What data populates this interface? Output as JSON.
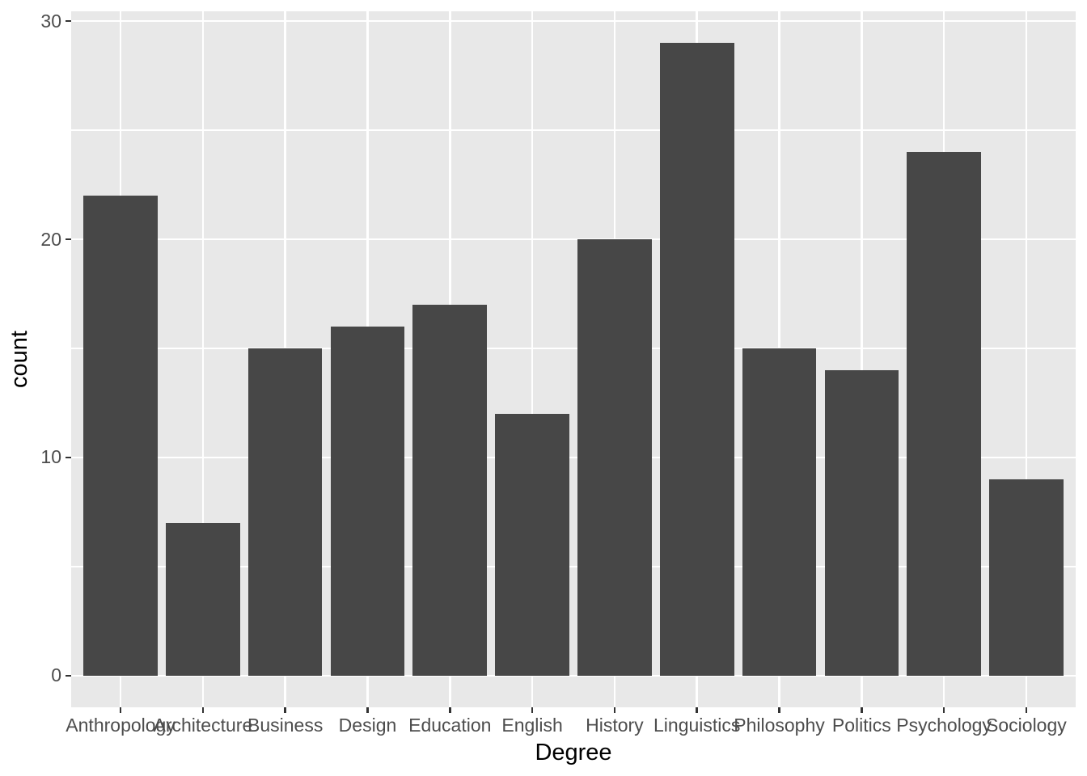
{
  "chart_data": {
    "type": "bar",
    "title": "",
    "xlabel": "Degree",
    "ylabel": "count",
    "categories": [
      "Anthropology",
      "Architecture",
      "Business",
      "Design",
      "Education",
      "English",
      "History",
      "Linguistics",
      "Philosophy",
      "Politics",
      "Psychology",
      "Sociology"
    ],
    "values": [
      22,
      7,
      15,
      16,
      17,
      12,
      20,
      29,
      15,
      14,
      24,
      9
    ],
    "yticks": [
      0,
      10,
      20,
      30
    ],
    "yticks_minor": [
      5,
      15,
      25
    ],
    "ylim": [
      0,
      30
    ],
    "grid": "on",
    "legend": "none",
    "style": "ggplot2-grey",
    "colors": {
      "bar_fill": "#474747",
      "panel_bg": "#E8E8E8",
      "grid_major": "#FFFFFF",
      "grid_minor": "#FFFFFF",
      "tick_text": "#4D4D4D",
      "tick_mark": "#333333",
      "axis_title": "#000000",
      "figure_bg": "#FFFFFF"
    }
  }
}
